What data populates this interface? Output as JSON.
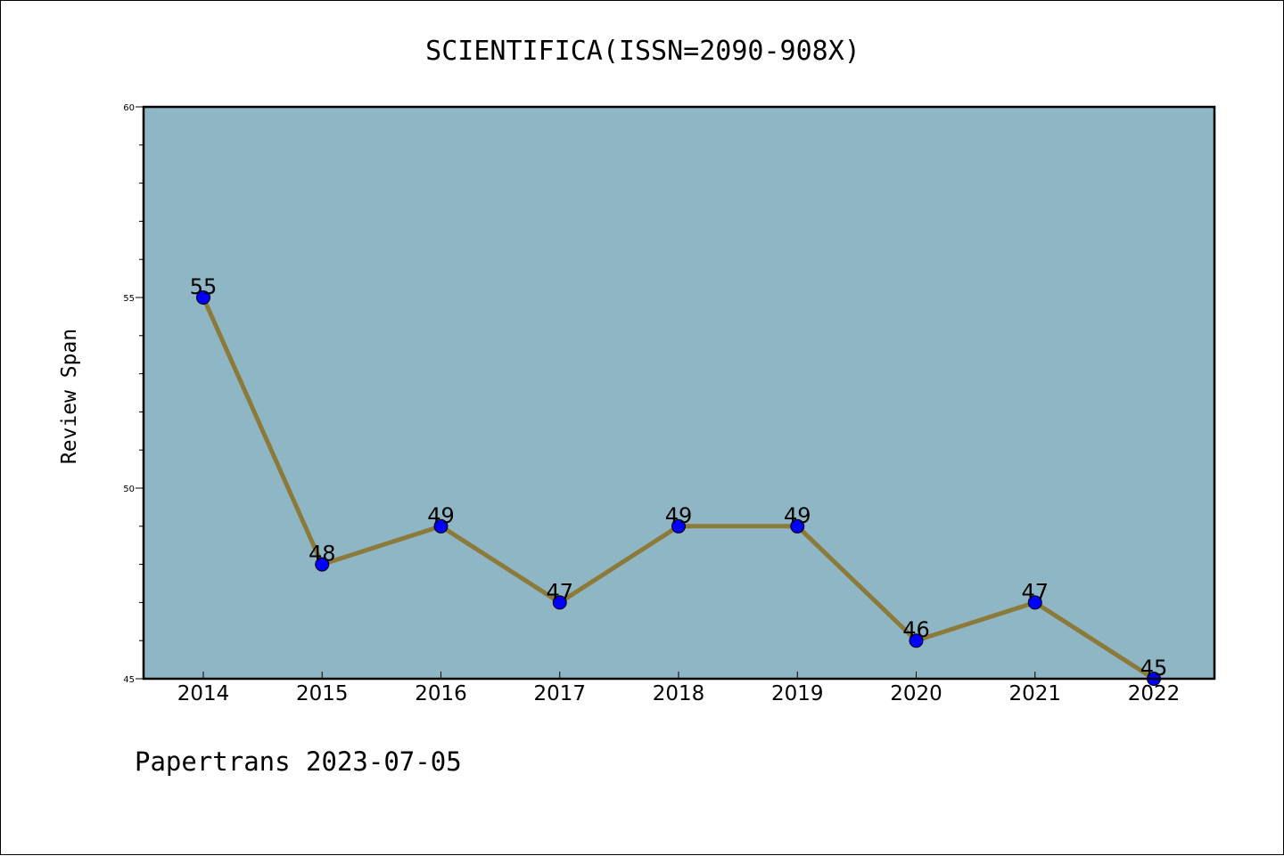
{
  "chart_data": {
    "type": "line",
    "title": "SCIENTIFICA(ISSN=2090-908X)",
    "xlabel": "",
    "ylabel": "Review Span",
    "categories": [
      "2014",
      "2015",
      "2016",
      "2017",
      "2018",
      "2019",
      "2020",
      "2021",
      "2022"
    ],
    "series": [
      {
        "values": [
          55,
          48,
          49,
          47,
          49,
          49,
          46,
          47,
          45
        ]
      }
    ],
    "ylim": [
      45,
      60
    ],
    "yticks": [
      "45",
      "50",
      "55",
      "60"
    ],
    "grid": false,
    "data_labels": true,
    "colors": {
      "plot_background": "#8fb6c4",
      "line": "#8c7a3a",
      "marker": "#0000ff"
    }
  },
  "footer": {
    "text": "Papertrans 2023-07-05"
  }
}
